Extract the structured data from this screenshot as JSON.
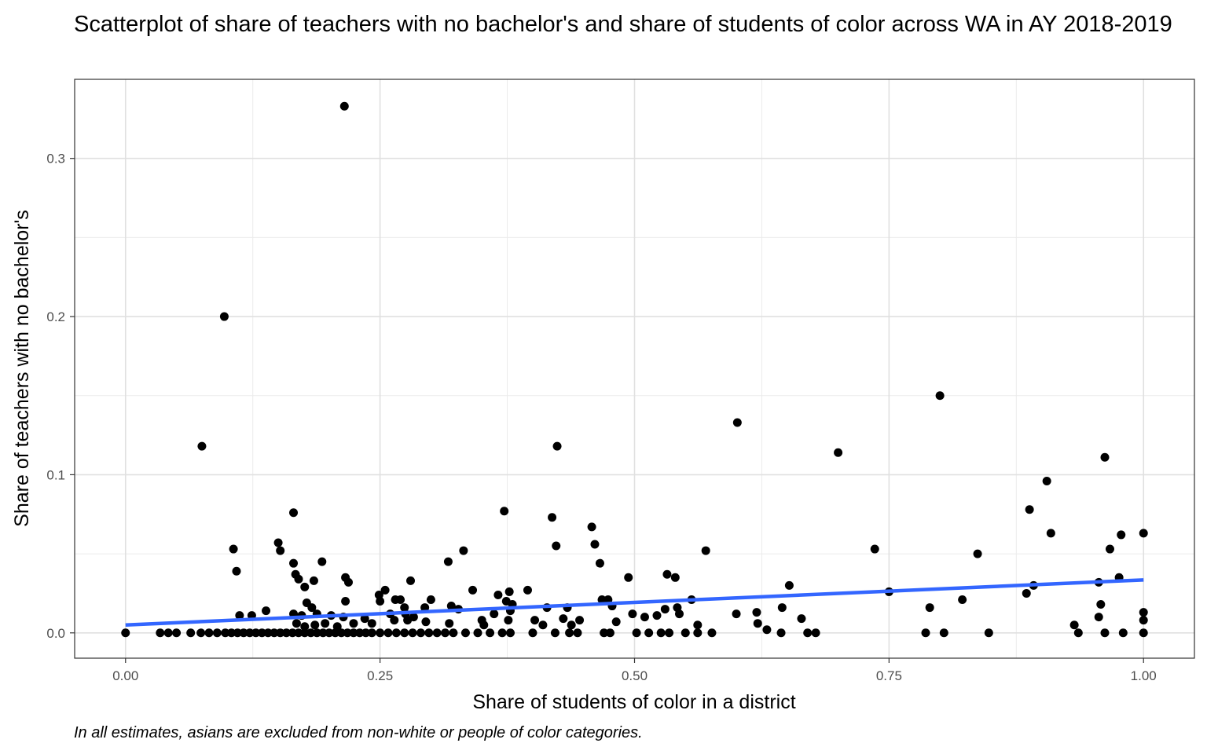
{
  "chart_data": {
    "type": "scatter",
    "title": "Scatterplot of share of teachers with no bachelor's and share of students of color across WA in AY 2018-2019",
    "xlabel": "Share of students of color in a district",
    "ylabel": "Share of teachers with no bachelor's",
    "caption": "In all estimates, asians are excluded from non-white or people of color categories.",
    "xlim": [
      -0.05,
      1.05
    ],
    "ylim": [
      -0.016,
      0.35
    ],
    "x_ticks": [
      0,
      0.25,
      0.5,
      0.75,
      1
    ],
    "x_tick_labels": [
      "0.00",
      "0.25",
      "0.50",
      "0.75",
      "1.00"
    ],
    "y_ticks": [
      0,
      0.1,
      0.2,
      0.3
    ],
    "y_tick_labels": [
      "0.0",
      "0.1",
      "0.2",
      "0.3"
    ],
    "grid": true,
    "point_color": "#000000",
    "trend_line": {
      "color": "#3366FF",
      "x": [
        0,
        1
      ],
      "y": [
        0.005,
        0.0335
      ]
    },
    "points": [
      [
        0.0,
        0.0
      ],
      [
        0.034,
        0.0
      ],
      [
        0.042,
        0.0
      ],
      [
        0.05,
        0.0
      ],
      [
        0.064,
        0.0
      ],
      [
        0.074,
        0.0
      ],
      [
        0.082,
        0.0
      ],
      [
        0.09,
        0.0
      ],
      [
        0.098,
        0.0
      ],
      [
        0.104,
        0.0
      ],
      [
        0.11,
        0.0
      ],
      [
        0.116,
        0.0
      ],
      [
        0.122,
        0.0
      ],
      [
        0.128,
        0.0
      ],
      [
        0.134,
        0.0
      ],
      [
        0.14,
        0.0
      ],
      [
        0.146,
        0.0
      ],
      [
        0.152,
        0.0
      ],
      [
        0.158,
        0.0
      ],
      [
        0.164,
        0.0
      ],
      [
        0.17,
        0.0
      ],
      [
        0.176,
        0.0
      ],
      [
        0.182,
        0.0
      ],
      [
        0.188,
        0.0
      ],
      [
        0.194,
        0.0
      ],
      [
        0.2,
        0.0
      ],
      [
        0.206,
        0.0
      ],
      [
        0.212,
        0.0
      ],
      [
        0.218,
        0.0
      ],
      [
        0.224,
        0.0
      ],
      [
        0.23,
        0.0
      ],
      [
        0.236,
        0.0
      ],
      [
        0.242,
        0.0
      ],
      [
        0.25,
        0.0
      ],
      [
        0.258,
        0.0
      ],
      [
        0.266,
        0.0
      ],
      [
        0.274,
        0.0
      ],
      [
        0.282,
        0.0
      ],
      [
        0.29,
        0.0
      ],
      [
        0.298,
        0.0
      ],
      [
        0.306,
        0.0
      ],
      [
        0.314,
        0.0
      ],
      [
        0.322,
        0.0
      ],
      [
        0.334,
        0.0
      ],
      [
        0.346,
        0.0
      ],
      [
        0.358,
        0.0
      ],
      [
        0.37,
        0.0
      ],
      [
        0.378,
        0.0
      ],
      [
        0.4,
        0.0
      ],
      [
        0.422,
        0.0
      ],
      [
        0.436,
        0.0
      ],
      [
        0.444,
        0.0
      ],
      [
        0.47,
        0.0
      ],
      [
        0.476,
        0.0
      ],
      [
        0.502,
        0.0
      ],
      [
        0.514,
        0.0
      ],
      [
        0.526,
        0.0
      ],
      [
        0.534,
        0.0
      ],
      [
        0.55,
        0.0
      ],
      [
        0.562,
        0.0
      ],
      [
        0.576,
        0.0
      ],
      [
        0.644,
        0.0
      ],
      [
        0.67,
        0.0
      ],
      [
        0.678,
        0.0
      ],
      [
        0.786,
        0.0
      ],
      [
        0.804,
        0.0
      ],
      [
        0.848,
        0.0
      ],
      [
        0.936,
        0.0
      ],
      [
        0.962,
        0.0
      ],
      [
        0.98,
        0.0
      ],
      [
        1.0,
        0.0
      ],
      [
        0.075,
        0.118
      ],
      [
        0.097,
        0.2
      ],
      [
        0.215,
        0.333
      ],
      [
        0.106,
        0.053
      ],
      [
        0.109,
        0.039
      ],
      [
        0.112,
        0.011
      ],
      [
        0.124,
        0.011
      ],
      [
        0.138,
        0.014
      ],
      [
        0.15,
        0.057
      ],
      [
        0.152,
        0.052
      ],
      [
        0.165,
        0.076
      ],
      [
        0.165,
        0.044
      ],
      [
        0.167,
        0.037
      ],
      [
        0.17,
        0.034
      ],
      [
        0.173,
        0.011
      ],
      [
        0.176,
        0.029
      ],
      [
        0.178,
        0.019
      ],
      [
        0.183,
        0.016
      ],
      [
        0.185,
        0.033
      ],
      [
        0.188,
        0.012
      ],
      [
        0.193,
        0.045
      ],
      [
        0.165,
        0.012
      ],
      [
        0.168,
        0.006
      ],
      [
        0.176,
        0.004
      ],
      [
        0.186,
        0.005
      ],
      [
        0.196,
        0.006
      ],
      [
        0.202,
        0.011
      ],
      [
        0.208,
        0.004
      ],
      [
        0.214,
        0.01
      ],
      [
        0.216,
        0.035
      ],
      [
        0.219,
        0.032
      ],
      [
        0.216,
        0.02
      ],
      [
        0.224,
        0.006
      ],
      [
        0.235,
        0.009
      ],
      [
        0.242,
        0.006
      ],
      [
        0.249,
        0.024
      ],
      [
        0.25,
        0.02
      ],
      [
        0.255,
        0.027
      ],
      [
        0.26,
        0.012
      ],
      [
        0.264,
        0.008
      ],
      [
        0.265,
        0.021
      ],
      [
        0.27,
        0.021
      ],
      [
        0.274,
        0.016
      ],
      [
        0.275,
        0.012
      ],
      [
        0.277,
        0.008
      ],
      [
        0.28,
        0.033
      ],
      [
        0.283,
        0.01
      ],
      [
        0.294,
        0.016
      ],
      [
        0.3,
        0.021
      ],
      [
        0.295,
        0.007
      ],
      [
        0.317,
        0.045
      ],
      [
        0.32,
        0.017
      ],
      [
        0.318,
        0.006
      ],
      [
        0.327,
        0.015
      ],
      [
        0.332,
        0.052
      ],
      [
        0.341,
        0.027
      ],
      [
        0.35,
        0.008
      ],
      [
        0.352,
        0.005
      ],
      [
        0.362,
        0.012
      ],
      [
        0.366,
        0.024
      ],
      [
        0.372,
        0.077
      ],
      [
        0.374,
        0.02
      ],
      [
        0.377,
        0.026
      ],
      [
        0.378,
        0.014
      ],
      [
        0.38,
        0.018
      ],
      [
        0.376,
        0.008
      ],
      [
        0.395,
        0.027
      ],
      [
        0.402,
        0.008
      ],
      [
        0.41,
        0.005
      ],
      [
        0.414,
        0.016
      ],
      [
        0.419,
        0.073
      ],
      [
        0.423,
        0.055
      ],
      [
        0.424,
        0.118
      ],
      [
        0.43,
        0.009
      ],
      [
        0.434,
        0.016
      ],
      [
        0.438,
        0.005
      ],
      [
        0.446,
        0.008
      ],
      [
        0.458,
        0.067
      ],
      [
        0.461,
        0.056
      ],
      [
        0.466,
        0.044
      ],
      [
        0.468,
        0.021
      ],
      [
        0.474,
        0.021
      ],
      [
        0.478,
        0.017
      ],
      [
        0.482,
        0.007
      ],
      [
        0.494,
        0.035
      ],
      [
        0.498,
        0.012
      ],
      [
        0.51,
        0.01
      ],
      [
        0.522,
        0.011
      ],
      [
        0.53,
        0.015
      ],
      [
        0.532,
        0.037
      ],
      [
        0.54,
        0.035
      ],
      [
        0.542,
        0.016
      ],
      [
        0.544,
        0.012
      ],
      [
        0.556,
        0.021
      ],
      [
        0.562,
        0.005
      ],
      [
        0.57,
        0.052
      ],
      [
        0.6,
        0.012
      ],
      [
        0.601,
        0.133
      ],
      [
        0.62,
        0.013
      ],
      [
        0.621,
        0.006
      ],
      [
        0.63,
        0.002
      ],
      [
        0.645,
        0.016
      ],
      [
        0.652,
        0.03
      ],
      [
        0.664,
        0.009
      ],
      [
        0.7,
        0.114
      ],
      [
        0.736,
        0.053
      ],
      [
        0.75,
        0.026
      ],
      [
        0.79,
        0.016
      ],
      [
        0.8,
        0.15
      ],
      [
        0.822,
        0.021
      ],
      [
        0.837,
        0.05
      ],
      [
        0.885,
        0.025
      ],
      [
        0.888,
        0.078
      ],
      [
        0.892,
        0.03
      ],
      [
        0.905,
        0.096
      ],
      [
        0.909,
        0.063
      ],
      [
        0.932,
        0.005
      ],
      [
        0.956,
        0.032
      ],
      [
        0.958,
        0.018
      ],
      [
        0.956,
        0.01
      ],
      [
        0.962,
        0.111
      ],
      [
        0.967,
        0.053
      ],
      [
        0.976,
        0.035
      ],
      [
        0.978,
        0.062
      ],
      [
        1.0,
        0.063
      ],
      [
        1.0,
        0.013
      ],
      [
        1.0,
        0.008
      ]
    ]
  }
}
